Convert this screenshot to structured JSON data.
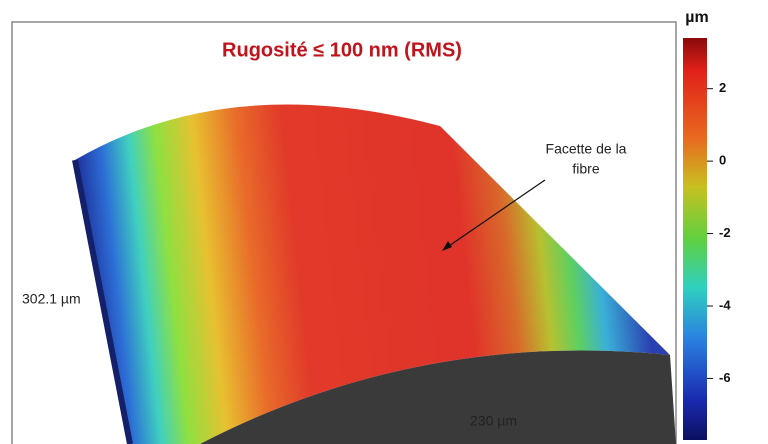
{
  "title": "Rugosité  ≤ 100 nm (RMS)",
  "annotation": {
    "lines": [
      "Facette de la",
      "fibre"
    ]
  },
  "dimensions": {
    "depth": "302.1 µm",
    "width": "230 µm"
  },
  "colorbar": {
    "unit": "µm",
    "lim": [
      -7.7,
      3.4
    ],
    "ticks": [
      2,
      0,
      -2,
      -4,
      -6
    ]
  }
}
